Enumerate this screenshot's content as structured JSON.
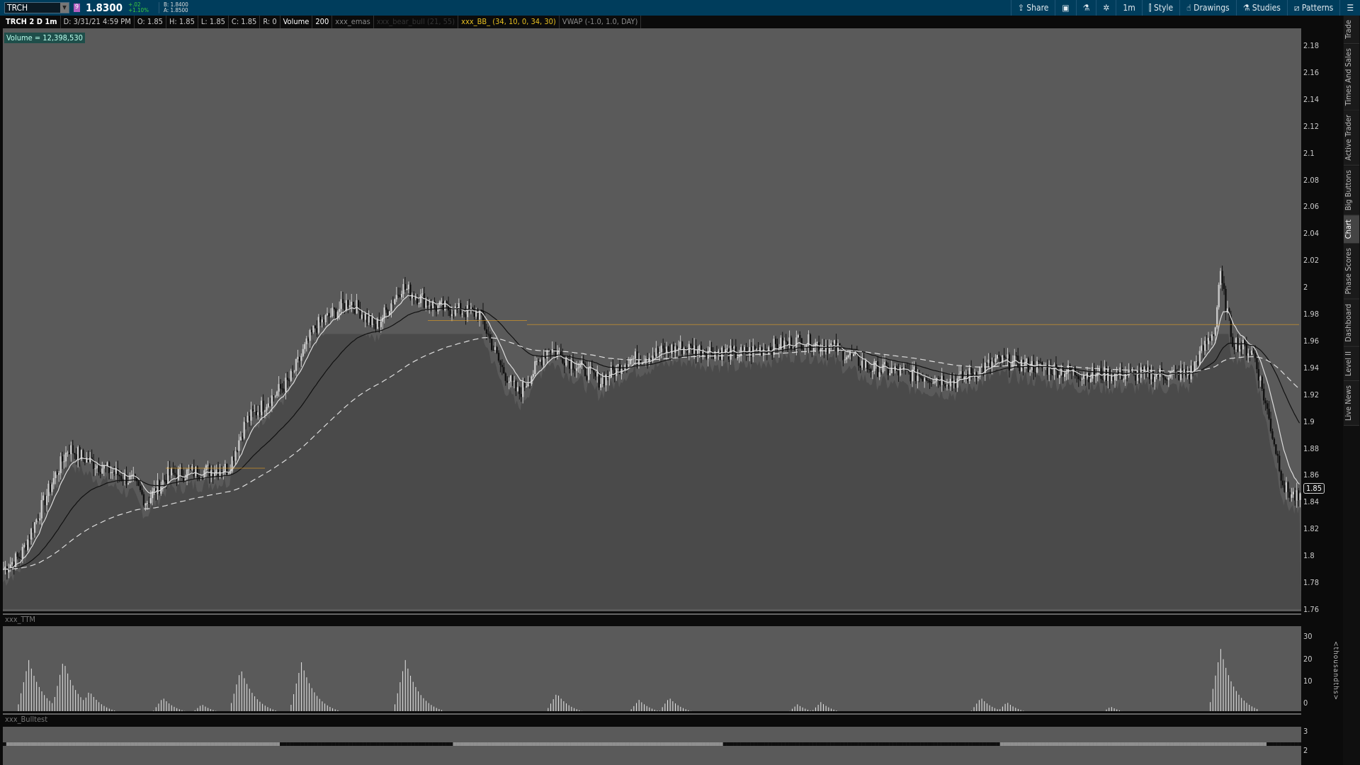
{
  "header": {
    "symbol": "TRCH",
    "link_number": "9",
    "last": "1.8300",
    "change": "+.02",
    "change_pct": "+1.10%",
    "bid": "B: 1.8400",
    "ask": "A: 1.8500",
    "tools": [
      {
        "label": "Share",
        "icon": "share-icon"
      },
      {
        "label": "",
        "icon": "detach-icon"
      },
      {
        "label": "",
        "icon": "flask-icon"
      },
      {
        "label": "",
        "icon": "gear-icon"
      },
      {
        "label": "1m",
        "icon": ""
      },
      {
        "label": "Style",
        "icon": "candle-icon"
      },
      {
        "label": "Drawings",
        "icon": "hand-icon"
      },
      {
        "label": "Studies",
        "icon": "flask-icon"
      },
      {
        "label": "Patterns",
        "icon": "pattern-icon"
      },
      {
        "label": "",
        "icon": "menu-icon"
      }
    ]
  },
  "infobar": {
    "title": "TRCH 2 D 1m",
    "date": "D: 3/31/21 4:59 PM",
    "open": "O: 1.85",
    "high": "H: 1.85",
    "low": "L: 1.85",
    "close": "C: 1.85",
    "range": "R: 0",
    "volume": "Volume",
    "volume_len": "200",
    "study1": "xxx_emas",
    "study2": "xxx_bear_bull (21, 55)",
    "study3": "xxx_BB_ (34, 10, 0, 34, 30)",
    "study4": "VWAP (-1.0, 1.0, DAY)"
  },
  "volume_label": "Volume = 12,398,530",
  "price_axis": {
    "ticks": [
      "2.18",
      "2.16",
      "2.14",
      "2.12",
      "2.1",
      "2.08",
      "2.06",
      "2.04",
      "2.02",
      "2",
      "1.98",
      "1.96",
      "1.94",
      "1.92",
      "1.9",
      "1.88",
      "1.86",
      "1.84",
      "1.82",
      "1.8",
      "1.78",
      "1.76"
    ],
    "current": "1.85"
  },
  "ttm": {
    "title": "xxx_TTM",
    "ticks": [
      "30",
      "20",
      "10",
      "0"
    ],
    "unit": "<thousandths>"
  },
  "bulltest": {
    "title": "xxx_Bulltest",
    "ticks": [
      "3",
      "2"
    ]
  },
  "side_tabs": [
    {
      "label": "Trade"
    },
    {
      "label": "Times And Sales"
    },
    {
      "label": "Active Trader"
    },
    {
      "label": "Big Buttons"
    },
    {
      "label": "Chart",
      "active": true
    },
    {
      "label": "Phase Scores"
    },
    {
      "label": "Dashboard"
    },
    {
      "label": "Level II"
    },
    {
      "label": "Live News"
    }
  ],
  "chart_data": {
    "type": "candlestick",
    "ylim": [
      1.76,
      2.19
    ],
    "bars": 1500,
    "price_path": [
      [
        0,
        1.79
      ],
      [
        20,
        1.8
      ],
      [
        60,
        1.86
      ],
      [
        75,
        1.88
      ],
      [
        100,
        1.87
      ],
      [
        150,
        1.855
      ],
      [
        165,
        1.84
      ],
      [
        190,
        1.86
      ],
      [
        260,
        1.865
      ],
      [
        280,
        1.9
      ],
      [
        330,
        1.93
      ],
      [
        360,
        1.97
      ],
      [
        400,
        1.99
      ],
      [
        430,
        1.97
      ],
      [
        460,
        2.0
      ],
      [
        500,
        1.985
      ],
      [
        550,
        1.98
      ],
      [
        575,
        1.94
      ],
      [
        595,
        1.92
      ],
      [
        630,
        1.955
      ],
      [
        690,
        1.93
      ],
      [
        720,
        1.945
      ],
      [
        780,
        1.955
      ],
      [
        850,
        1.95
      ],
      [
        920,
        1.96
      ],
      [
        960,
        1.955
      ],
      [
        1000,
        1.94
      ],
      [
        1100,
        1.93
      ],
      [
        1150,
        1.945
      ],
      [
        1250,
        1.935
      ],
      [
        1370,
        1.935
      ],
      [
        1400,
        1.97
      ],
      [
        1405,
        2.01
      ],
      [
        1420,
        1.96
      ],
      [
        1445,
        1.95
      ],
      [
        1480,
        1.85
      ],
      [
        1499,
        1.84
      ]
    ],
    "ttm_peaks": [
      [
        30,
        25
      ],
      [
        70,
        25
      ],
      [
        100,
        11
      ],
      [
        185,
        8
      ],
      [
        230,
        5
      ],
      [
        275,
        21
      ],
      [
        345,
        24
      ],
      [
        465,
        25
      ],
      [
        640,
        10
      ],
      [
        735,
        7
      ],
      [
        770,
        8
      ],
      [
        918,
        5
      ],
      [
        945,
        6
      ],
      [
        1130,
        8
      ],
      [
        1160,
        6
      ],
      [
        1280,
        4
      ],
      [
        1407,
        30
      ]
    ],
    "ttm_ylim": [
      0,
      32
    ],
    "colors": {
      "up": "#c8c8c8",
      "down": "#111111",
      "squeeze": "#b01818",
      "ema_fast": "#dddddd",
      "ema_slow": "#111111",
      "vwap": "#dddddd",
      "level": "#e8a020"
    }
  }
}
